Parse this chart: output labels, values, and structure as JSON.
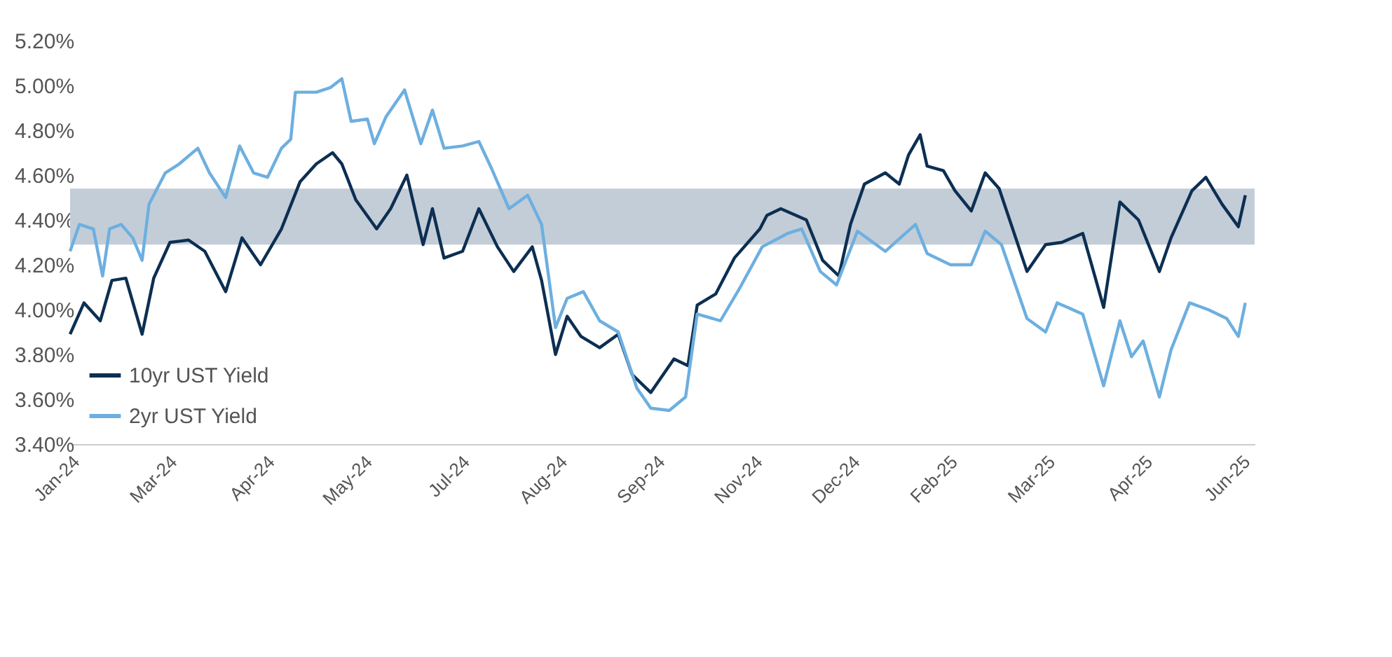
{
  "chart_data": {
    "type": "line",
    "xlim": [
      "2024-01-21",
      "2025-06-14"
    ],
    "xticks": [
      {
        "value": "2024-01-21",
        "label": "Jan-24"
      },
      {
        "value": "2024-03-03",
        "label": "Mar-24"
      },
      {
        "value": "2024-04-14",
        "label": "Apr-24"
      },
      {
        "value": "2024-05-26",
        "label": "May-24"
      },
      {
        "value": "2024-07-07",
        "label": "Jul-24"
      },
      {
        "value": "2024-08-18",
        "label": "Aug-24"
      },
      {
        "value": "2024-09-29",
        "label": "Sep-24"
      },
      {
        "value": "2024-11-10",
        "label": "Nov-24"
      },
      {
        "value": "2024-12-22",
        "label": "Dec-24"
      },
      {
        "value": "2025-02-02",
        "label": "Feb-25"
      },
      {
        "value": "2025-03-16",
        "label": "Mar-25"
      },
      {
        "value": "2025-04-27",
        "label": "Apr-25"
      },
      {
        "value": "2025-06-08",
        "label": "Jun-25"
      }
    ],
    "ylim": [
      3.4,
      5.2
    ],
    "yticks": [
      {
        "value": 3.4,
        "label": "3.40%"
      },
      {
        "value": 3.6,
        "label": "3.60%"
      },
      {
        "value": 3.8,
        "label": "3.80%"
      },
      {
        "value": 4.0,
        "label": "4.00%"
      },
      {
        "value": 4.2,
        "label": "4.20%"
      },
      {
        "value": 4.4,
        "label": "4.40%"
      },
      {
        "value": 4.6,
        "label": "4.60%"
      },
      {
        "value": 4.8,
        "label": "4.80%"
      },
      {
        "value": 5.0,
        "label": "5.00%"
      },
      {
        "value": 5.2,
        "label": "5.20%"
      }
    ],
    "grid": false,
    "legend": "bottom left",
    "bands": [
      {
        "axis": "y",
        "from": 4.29,
        "to": 4.54,
        "color": "#c3cdd7"
      }
    ],
    "series": [
      {
        "name": "10yr UST Yield",
        "color": "#0c2f52",
        "x": [
          "2024-01-21",
          "2024-01-27",
          "2024-02-03",
          "2024-02-08",
          "2024-02-14",
          "2024-02-21",
          "2024-02-26",
          "2024-03-04",
          "2024-03-12",
          "2024-03-19",
          "2024-03-28",
          "2024-04-04",
          "2024-04-12",
          "2024-04-21",
          "2024-04-29",
          "2024-05-06",
          "2024-05-13",
          "2024-05-17",
          "2024-05-23",
          "2024-06-01",
          "2024-06-07",
          "2024-06-14",
          "2024-06-21",
          "2024-06-25",
          "2024-06-30",
          "2024-07-08",
          "2024-07-15",
          "2024-07-23",
          "2024-07-30",
          "2024-08-07",
          "2024-08-11",
          "2024-08-17",
          "2024-08-22",
          "2024-08-28",
          "2024-09-05",
          "2024-09-13",
          "2024-09-19",
          "2024-09-27",
          "2024-10-07",
          "2024-10-13",
          "2024-10-17",
          "2024-10-25",
          "2024-11-02",
          "2024-11-13",
          "2024-11-16",
          "2024-11-22",
          "2024-12-03",
          "2024-12-10",
          "2024-12-17",
          "2024-12-22",
          "2024-12-28",
          "2025-01-06",
          "2025-01-12",
          "2025-01-16",
          "2025-01-21",
          "2025-01-24",
          "2025-01-31",
          "2025-02-05",
          "2025-02-12",
          "2025-02-18",
          "2025-02-24",
          "2025-03-08",
          "2025-03-16",
          "2025-03-23",
          "2025-04-01",
          "2025-04-10",
          "2025-04-17",
          "2025-04-25",
          "2025-05-04",
          "2025-05-09",
          "2025-05-18",
          "2025-05-24",
          "2025-05-31",
          "2025-06-07",
          "2025-06-10"
        ],
        "values": [
          3.89,
          4.03,
          3.95,
          4.13,
          4.14,
          3.89,
          4.14,
          4.3,
          4.31,
          4.26,
          4.08,
          4.32,
          4.2,
          4.36,
          4.57,
          4.65,
          4.7,
          4.65,
          4.49,
          4.36,
          4.45,
          4.6,
          4.29,
          4.45,
          4.23,
          4.26,
          4.45,
          4.28,
          4.17,
          4.28,
          4.13,
          3.8,
          3.97,
          3.88,
          3.83,
          3.89,
          3.71,
          3.63,
          3.78,
          3.75,
          4.02,
          4.07,
          4.23,
          4.36,
          4.42,
          4.45,
          4.4,
          4.22,
          4.15,
          4.38,
          4.56,
          4.61,
          4.56,
          4.69,
          4.78,
          4.64,
          4.62,
          4.53,
          4.44,
          4.61,
          4.54,
          4.17,
          4.29,
          4.3,
          4.34,
          4.01,
          4.48,
          4.4,
          4.17,
          4.32,
          4.53,
          4.59,
          4.47,
          4.37,
          4.51
        ]
      },
      {
        "name": "2yr UST Yield",
        "color": "#6dafe0",
        "x": [
          "2024-01-21",
          "2024-01-25",
          "2024-01-31",
          "2024-02-04",
          "2024-02-07",
          "2024-02-12",
          "2024-02-17",
          "2024-02-21",
          "2024-02-24",
          "2024-03-02",
          "2024-03-08",
          "2024-03-16",
          "2024-03-21",
          "2024-03-28",
          "2024-04-03",
          "2024-04-09",
          "2024-04-15",
          "2024-04-21",
          "2024-04-25",
          "2024-04-27",
          "2024-05-06",
          "2024-05-12",
          "2024-05-17",
          "2024-05-21",
          "2024-05-28",
          "2024-05-31",
          "2024-06-05",
          "2024-06-13",
          "2024-06-20",
          "2024-06-25",
          "2024-06-30",
          "2024-07-08",
          "2024-07-15",
          "2024-07-20",
          "2024-07-28",
          "2024-08-05",
          "2024-08-11",
          "2024-08-17",
          "2024-08-22",
          "2024-08-29",
          "2024-09-05",
          "2024-09-13",
          "2024-09-21",
          "2024-09-27",
          "2024-10-05",
          "2024-10-12",
          "2024-10-17",
          "2024-10-27",
          "2024-11-04",
          "2024-11-14",
          "2024-11-25",
          "2024-12-01",
          "2024-12-09",
          "2024-12-16",
          "2024-12-25",
          "2025-01-06",
          "2025-01-19",
          "2025-01-24",
          "2025-02-03",
          "2025-02-12",
          "2025-02-18",
          "2025-02-25",
          "2025-03-08",
          "2025-03-16",
          "2025-03-21",
          "2025-04-01",
          "2025-04-10",
          "2025-04-17",
          "2025-04-22",
          "2025-04-27",
          "2025-05-04",
          "2025-05-09",
          "2025-05-17",
          "2025-05-25",
          "2025-06-02",
          "2025-06-07",
          "2025-06-10"
        ],
        "values": [
          4.26,
          4.38,
          4.36,
          4.15,
          4.36,
          4.38,
          4.32,
          4.22,
          4.47,
          4.61,
          4.65,
          4.72,
          4.61,
          4.5,
          4.73,
          4.61,
          4.59,
          4.72,
          4.76,
          4.97,
          4.97,
          4.99,
          5.03,
          4.84,
          4.85,
          4.74,
          4.86,
          4.98,
          4.74,
          4.89,
          4.72,
          4.73,
          4.75,
          4.64,
          4.45,
          4.51,
          4.38,
          3.92,
          4.05,
          4.08,
          3.95,
          3.9,
          3.65,
          3.56,
          3.55,
          3.61,
          3.98,
          3.95,
          4.09,
          4.28,
          4.34,
          4.36,
          4.17,
          4.11,
          4.35,
          4.26,
          4.38,
          4.25,
          4.2,
          4.2,
          4.35,
          4.29,
          3.96,
          3.9,
          4.03,
          3.98,
          3.66,
          3.95,
          3.79,
          3.86,
          3.61,
          3.82,
          4.03,
          4.0,
          3.96,
          3.88,
          4.03
        ]
      }
    ]
  }
}
